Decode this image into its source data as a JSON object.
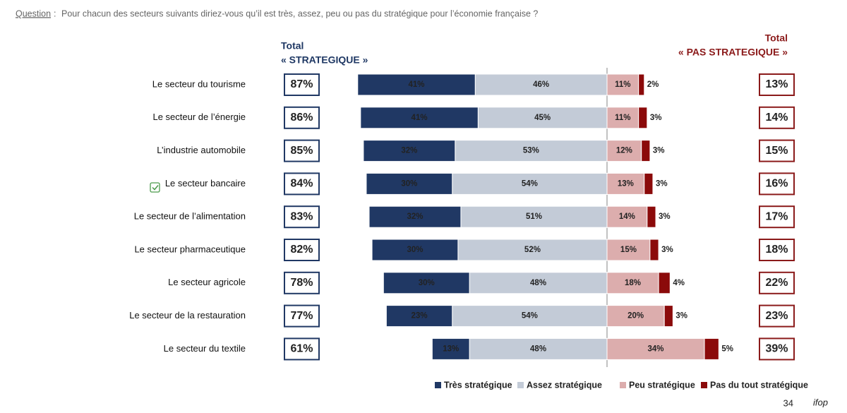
{
  "chart_data": {
    "type": "diverging_bar",
    "question_label": "Question",
    "question_colon": ":",
    "question": "Pour chacun des secteurs suivants diriez-vous qu’il est très, assez, peu ou pas du stratégique pour l’économie française ?",
    "left_header": [
      "Total",
      "« STRATEGIQUE »"
    ],
    "right_header": [
      "Total",
      "« PAS STRATEGIQUE »"
    ],
    "categories": [
      "Le secteur du tourisme",
      "Le secteur de l’énergie",
      "L’industrie automobile",
      "Le secteur bancaire",
      "Le secteur de l’alimentation",
      "Le secteur pharmaceutique",
      "Le secteur agricole",
      "Le secteur de la restauration",
      "Le secteur du textile"
    ],
    "series": [
      {
        "name": "Très stratégique",
        "color": "#203864",
        "side": "left",
        "values": [
          41,
          41,
          32,
          30,
          32,
          30,
          30,
          23,
          13
        ],
        "value_labels": [
          "41%",
          "41%",
          "32%",
          "30%",
          "32%",
          "30%",
          "30%",
          "23%",
          "13%"
        ]
      },
      {
        "name": "Assez stratégique",
        "color": "#c3cbd7",
        "side": "left",
        "values": [
          46,
          45,
          53,
          54,
          51,
          52,
          48,
          54,
          48
        ],
        "value_labels": [
          "46%",
          "45%",
          "53%",
          "54%",
          "51%",
          "52%",
          "48%",
          "54%",
          "48%"
        ]
      },
      {
        "name": "Peu stratégique",
        "color": "#dcadad",
        "side": "right",
        "values": [
          11,
          11,
          12,
          13,
          14,
          15,
          18,
          20,
          34
        ],
        "value_labels": [
          "11%",
          "11%",
          "12%",
          "13%",
          "14%",
          "15%",
          "18%",
          "20%",
          "34%"
        ]
      },
      {
        "name": "Pas du tout stratégique",
        "color": "#8b0a0a",
        "side": "right",
        "values": [
          2,
          3,
          3,
          3,
          3,
          3,
          4,
          3,
          5
        ],
        "value_labels": [
          "2%",
          "3%",
          "3%",
          "3%",
          "3%",
          "3%",
          "4%",
          "3%",
          "5%"
        ]
      }
    ],
    "total_strategic": {
      "values": [
        87,
        86,
        85,
        84,
        83,
        82,
        78,
        77,
        61
      ],
      "value_labels": [
        "87%",
        "86%",
        "85%",
        "84%",
        "83%",
        "82%",
        "78%",
        "77%",
        "61%"
      ]
    },
    "total_not_strategic": {
      "values": [
        13,
        14,
        15,
        16,
        17,
        18,
        22,
        23,
        39
      ],
      "value_labels": [
        "13%",
        "14%",
        "15%",
        "16%",
        "17%",
        "18%",
        "22%",
        "23%",
        "39%"
      ]
    },
    "page_number": "34",
    "logo": "ifop"
  }
}
